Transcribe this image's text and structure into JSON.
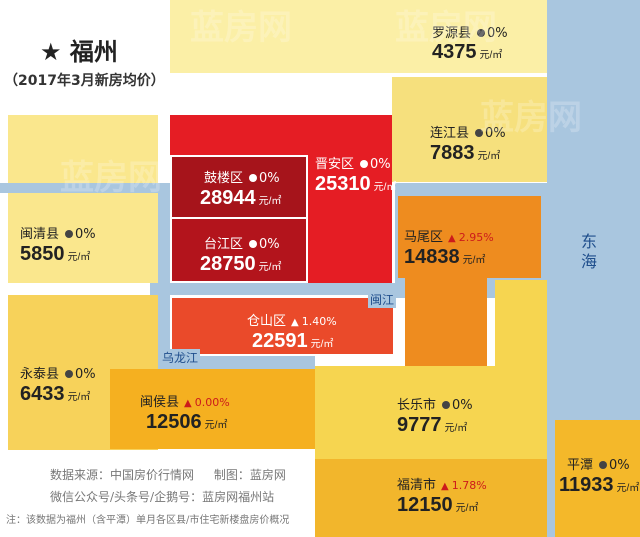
{
  "header": {
    "star": "★",
    "city": "福州",
    "subtitle": "（2017年3月新房均价）"
  },
  "unit": "元/㎡",
  "districts": {
    "luoyuan": {
      "name": "罗源县",
      "change": "0%",
      "price": "4375"
    },
    "lianjiang": {
      "name": "连江县",
      "change": "0%",
      "price": "7883"
    },
    "jinan": {
      "name": "晋安区",
      "change": "0%",
      "price": "25310"
    },
    "gulou": {
      "name": "鼓楼区",
      "change": "0%",
      "price": "28944"
    },
    "taijiang": {
      "name": "台江区",
      "change": "0%",
      "price": "28750"
    },
    "mawei": {
      "name": "马尾区",
      "change": "2.95%",
      "price": "14838"
    },
    "minqing": {
      "name": "闽清县",
      "change": "0%",
      "price": "5850"
    },
    "cangshan": {
      "name": "仓山区",
      "change": "1.40%",
      "price": "22591"
    },
    "yongtai": {
      "name": "永泰县",
      "change": "0%",
      "price": "6433"
    },
    "minhou": {
      "name": "闽侯县",
      "change": "0.00%",
      "price": "12506"
    },
    "changle": {
      "name": "长乐市",
      "change": "0%",
      "price": "9777"
    },
    "fuqing": {
      "name": "福清市",
      "change": "1.78%",
      "price": "12150"
    },
    "pingtan": {
      "name": "平潭",
      "change": "0%",
      "price": "11933"
    }
  },
  "rivers": {
    "minjiang": "闽江",
    "wulongjiang": "乌龙江",
    "sea": "东海"
  },
  "watermark": "蓝房网",
  "footer": {
    "source_label": "数据来源：",
    "source": "中国房价行情网",
    "maker_label": "制图：",
    "maker": "蓝房网",
    "accounts": "微信公众号/头条号/企鹅号：蓝房网福州站",
    "note": "注：该数据为福州（含平潭）单月各区县/市住宅新楼盘房价概况"
  },
  "colors": {
    "luoyuan": "#fbefa6",
    "lianjiang": "#f6e07d",
    "jinan": "#e51d24",
    "gulou": "#a6141b",
    "taijiang": "#b3141c",
    "mawei": "#ee8c1f",
    "minqing": "#fae78d",
    "cangshan": "#ea4a2a",
    "yongtai": "#f7d25a",
    "minhou": "#f5b020",
    "changle": "#f6d550",
    "fuqing": "#f2b62c",
    "pingtan": "#f4b82a",
    "river": "#a9c6df"
  }
}
